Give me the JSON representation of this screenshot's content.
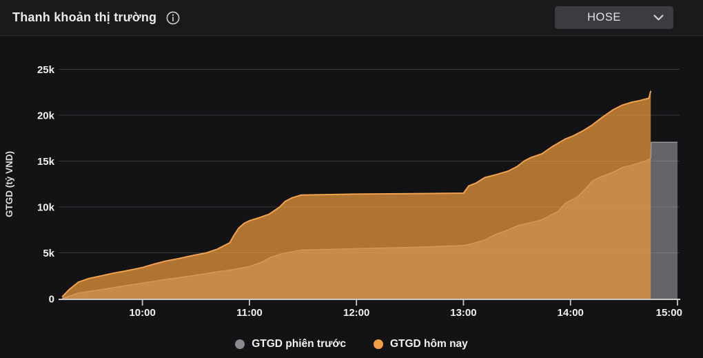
{
  "header": {
    "title": "Thanh khoản thị trường",
    "info_icon": "info-circle-icon",
    "exchange_selector": {
      "value": "HOSE",
      "icon": "chevron-down-icon"
    }
  },
  "chart_data": {
    "type": "area",
    "title": "Thanh khoản thị trường",
    "xlabel": "",
    "ylabel": "GTGD (tỷ VND)",
    "x_unit": "minutes since 09:00",
    "t_range": [
      13,
      360
    ],
    "v_range": [
      0,
      25000
    ],
    "grid": true,
    "legend_position": "bottom",
    "x_ticks": [
      {
        "t": 60,
        "label": "10:00"
      },
      {
        "t": 120,
        "label": "11:00"
      },
      {
        "t": 180,
        "label": "12:00"
      },
      {
        "t": 240,
        "label": "13:00"
      },
      {
        "t": 300,
        "label": "14:00"
      },
      {
        "t": 360,
        "label": "15:00"
      }
    ],
    "y_ticks": [
      {
        "v": 0,
        "label": "0"
      },
      {
        "v": 5000,
        "label": "5k"
      },
      {
        "v": 10000,
        "label": "10k"
      },
      {
        "v": 15000,
        "label": "15k"
      },
      {
        "v": 20000,
        "label": "20k"
      },
      {
        "v": 25000,
        "label": "25k"
      }
    ],
    "series": [
      {
        "name": "GTGD phiên trước",
        "color": "#97979c",
        "dot_color": "#8a8a8f",
        "fill": "rgba(168,168,174,0.55)",
        "stroke_width": 1.5,
        "points": [
          [
            15,
            0
          ],
          [
            24,
            600
          ],
          [
            37,
            1000
          ],
          [
            50,
            1400
          ],
          [
            60,
            1700
          ],
          [
            73,
            2100
          ],
          [
            88,
            2500
          ],
          [
            101,
            2900
          ],
          [
            112,
            3200
          ],
          [
            120,
            3500
          ],
          [
            127,
            4000
          ],
          [
            132,
            4500
          ],
          [
            138,
            4900
          ],
          [
            149,
            5300
          ],
          [
            180,
            5450
          ],
          [
            212,
            5600
          ],
          [
            240,
            5800
          ],
          [
            244,
            5950
          ],
          [
            252,
            6400
          ],
          [
            258,
            7000
          ],
          [
            265,
            7500
          ],
          [
            271,
            8000
          ],
          [
            278,
            8300
          ],
          [
            284,
            8600
          ],
          [
            290,
            9200
          ],
          [
            293,
            9500
          ],
          [
            297,
            10400
          ],
          [
            301,
            10800
          ],
          [
            304,
            11100
          ],
          [
            307,
            11700
          ],
          [
            309,
            12100
          ],
          [
            312,
            12800
          ],
          [
            316,
            13200
          ],
          [
            320,
            13500
          ],
          [
            324,
            13800
          ],
          [
            329,
            14300
          ],
          [
            336,
            14650
          ],
          [
            342,
            15000
          ],
          [
            345,
            15300
          ],
          [
            345.3,
            17050
          ],
          [
            360,
            17050
          ]
        ]
      },
      {
        "name": "GTGD hôm nay",
        "color": "#f2a24d",
        "dot_color": "#f09e42",
        "fill": "rgba(235,154,60,0.72)",
        "stroke_width": 2,
        "points": [
          [
            15,
            200
          ],
          [
            19,
            1000
          ],
          [
            24,
            1800
          ],
          [
            30,
            2200
          ],
          [
            37,
            2500
          ],
          [
            44,
            2800
          ],
          [
            50,
            3000
          ],
          [
            60,
            3400
          ],
          [
            67,
            3800
          ],
          [
            73,
            4100
          ],
          [
            81,
            4400
          ],
          [
            88,
            4700
          ],
          [
            96,
            5000
          ],
          [
            102,
            5400
          ],
          [
            109,
            6100
          ],
          [
            111,
            6800
          ],
          [
            114,
            7700
          ],
          [
            117,
            8200
          ],
          [
            120,
            8500
          ],
          [
            125,
            8800
          ],
          [
            131,
            9200
          ],
          [
            137,
            10000
          ],
          [
            140,
            10600
          ],
          [
            144,
            11000
          ],
          [
            149,
            11300
          ],
          [
            180,
            11400
          ],
          [
            212,
            11450
          ],
          [
            240,
            11500
          ],
          [
            243,
            12300
          ],
          [
            247,
            12600
          ],
          [
            252,
            13200
          ],
          [
            258,
            13500
          ],
          [
            265,
            13900
          ],
          [
            270,
            14400
          ],
          [
            274,
            15000
          ],
          [
            278,
            15400
          ],
          [
            284,
            15800
          ],
          [
            290,
            16600
          ],
          [
            297,
            17400
          ],
          [
            301,
            17700
          ],
          [
            307,
            18300
          ],
          [
            312,
            18900
          ],
          [
            318,
            19800
          ],
          [
            324,
            20600
          ],
          [
            329,
            21100
          ],
          [
            334,
            21400
          ],
          [
            339,
            21600
          ],
          [
            344,
            21850
          ],
          [
            345,
            22650
          ]
        ]
      }
    ],
    "colors": {
      "background": "#131316",
      "gridline": "#3a3a3e",
      "axis_line": "#c9c9cc",
      "tick_label": "#f1f1f3",
      "axis_title": "#dcdcdf"
    }
  },
  "legend": {
    "items": [
      {
        "label": "GTGD phiên trước"
      },
      {
        "label": "GTGD hôm nay"
      }
    ]
  }
}
